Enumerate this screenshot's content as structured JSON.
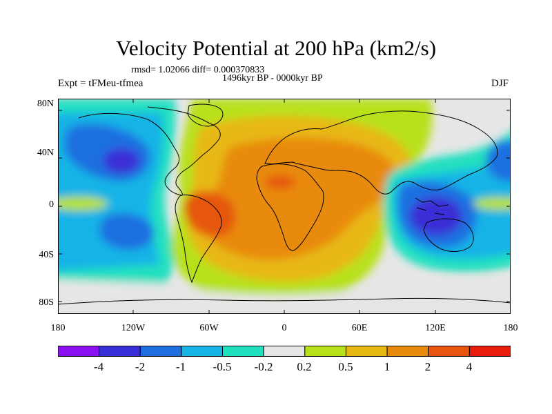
{
  "title": "Velocity Potential at 200 hPa (km2/s)",
  "stats": "rmsd= 1.02066 diff= 0.000370833",
  "period": "1496kyr BP - 0000kyr BP",
  "experiment": "Expt = tFMeu-tfmea",
  "season": "DJF",
  "map": {
    "projection": "cylindrical equidistant",
    "lon_range": [
      -180,
      180
    ],
    "lat_range": [
      -90,
      90
    ],
    "lat_ticks": [
      {
        "value": 80,
        "label": "80N"
      },
      {
        "value": 40,
        "label": "40N"
      },
      {
        "value": 0,
        "label": "0"
      },
      {
        "value": -40,
        "label": "40S"
      },
      {
        "value": -80,
        "label": "80S"
      }
    ],
    "lon_ticks": [
      {
        "value": -180,
        "label": "180"
      },
      {
        "value": -120,
        "label": "120W"
      },
      {
        "value": -60,
        "label": "60W"
      },
      {
        "value": 0,
        "label": "0"
      },
      {
        "value": 60,
        "label": "60E"
      },
      {
        "value": 120,
        "label": "120E"
      },
      {
        "value": 180,
        "label": "180"
      }
    ]
  },
  "colorbar": {
    "colors": [
      "#8a12f0",
      "#3a2fd6",
      "#1f6fe0",
      "#18b4e6",
      "#20e0c0",
      "#e6e6e6",
      "#b8e11a",
      "#e8b812",
      "#e88a0c",
      "#e6560e",
      "#e81c0c"
    ],
    "labels": [
      "-4",
      "-2",
      "-1",
      "-0.5",
      "-0.2",
      "0.2",
      "0.5",
      "1",
      "2",
      "4"
    ]
  }
}
